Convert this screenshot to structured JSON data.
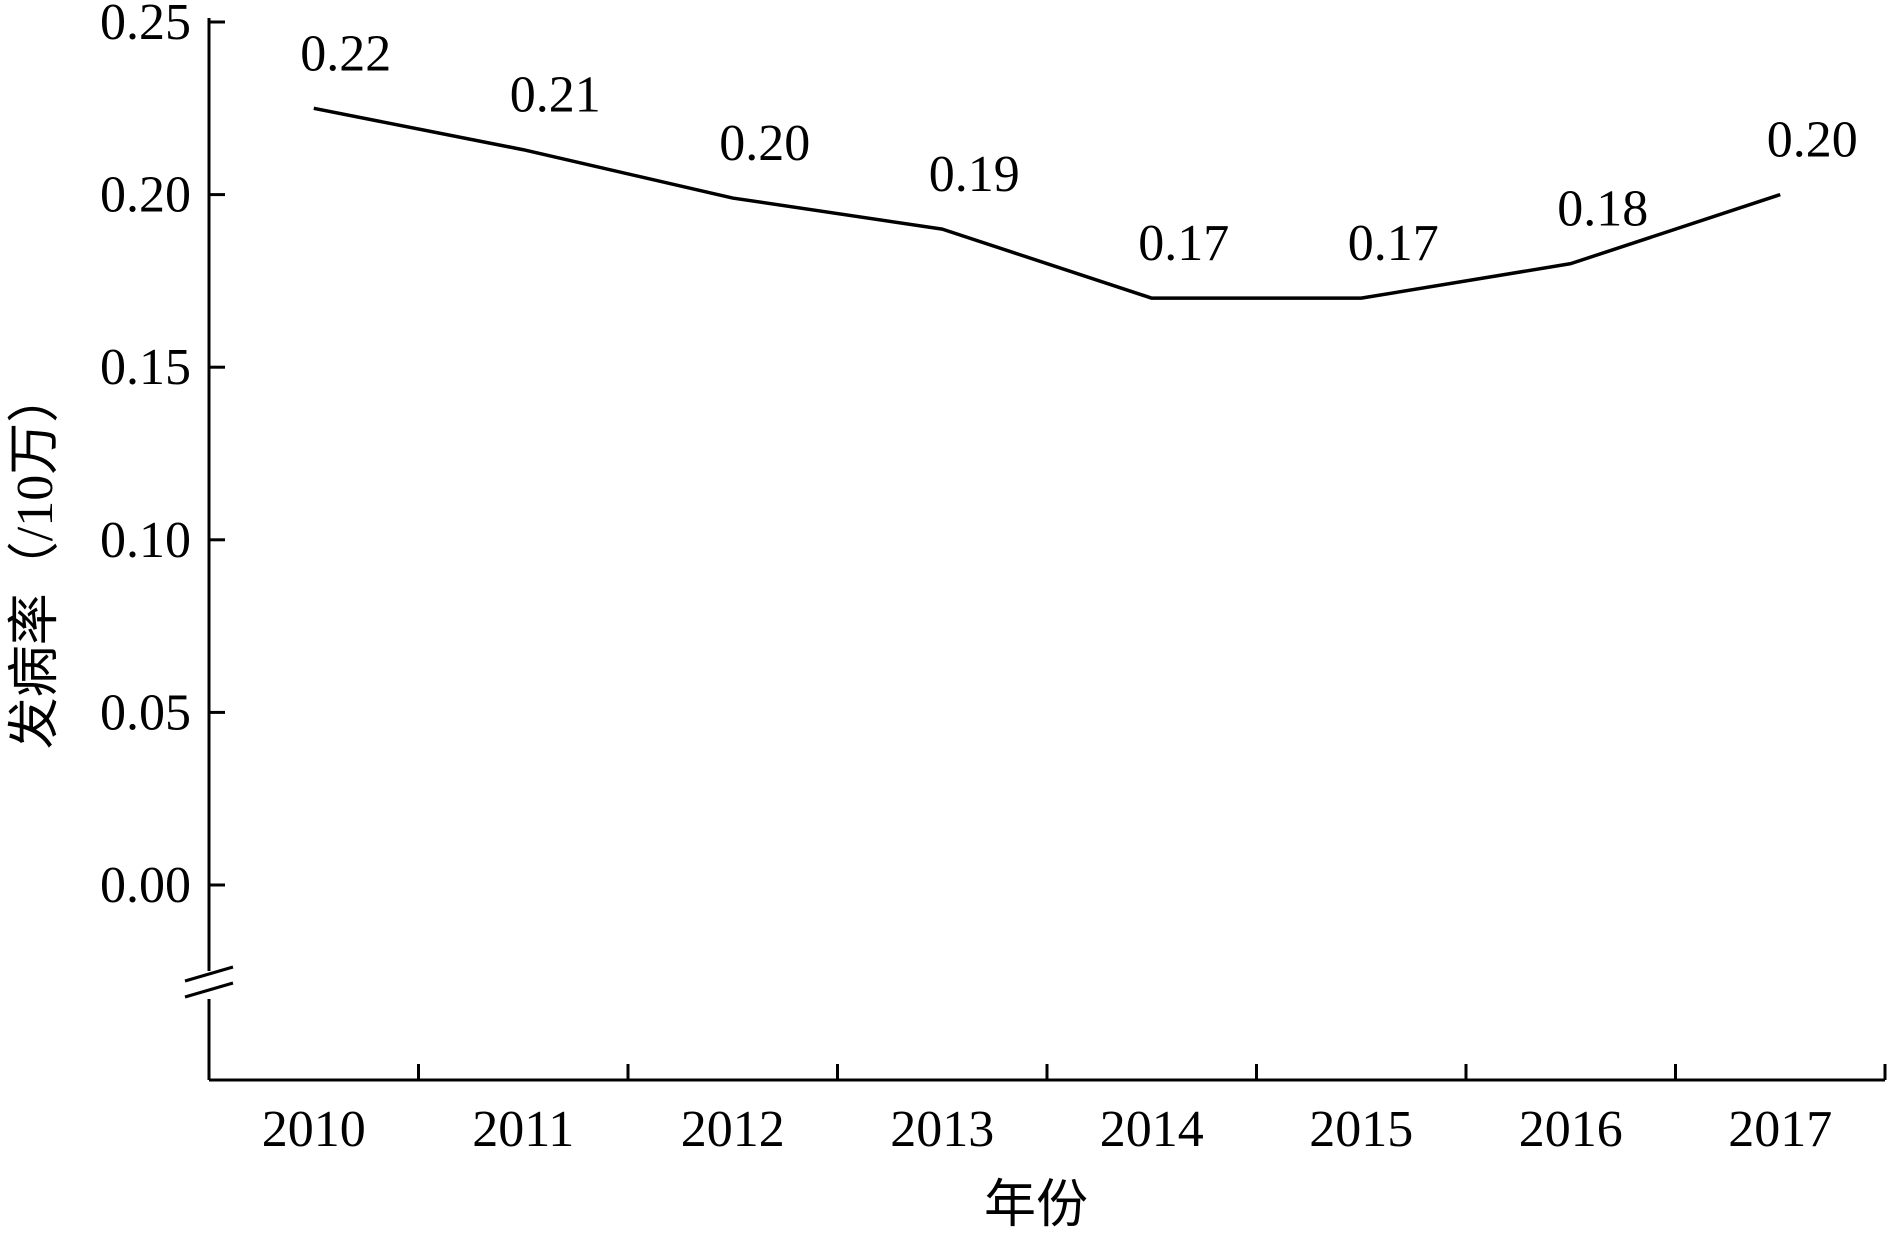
{
  "chart_data": {
    "type": "line",
    "title": "",
    "xlabel": "年份",
    "ylabel": "发病率（/10万）",
    "categories": [
      "2010",
      "2011",
      "2012",
      "2013",
      "2014",
      "2015",
      "2016",
      "2017"
    ],
    "series": [
      {
        "values": [
          0.225,
          0.213,
          0.199,
          0.19,
          0.17,
          0.17,
          0.18,
          0.2
        ],
        "labels": [
          "0.22",
          "0.21",
          "0.20",
          "0.19",
          "0.17",
          "0.17",
          "0.18",
          "0.20"
        ]
      }
    ],
    "ylim": [
      0,
      0.25
    ],
    "yticks": [
      "0.00",
      "0.05",
      "0.10",
      "0.15",
      "0.20",
      "0.25"
    ],
    "y_axis_break": true,
    "grid": false,
    "line_color": "#000000"
  }
}
